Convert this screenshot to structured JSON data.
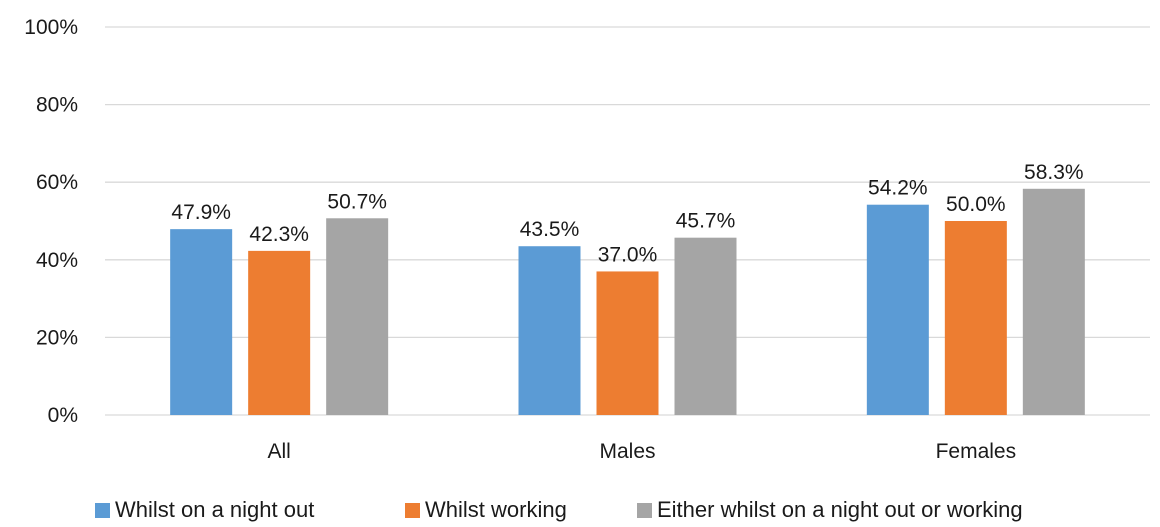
{
  "chart_data": {
    "type": "bar",
    "categories": [
      "All",
      "Males",
      "Females"
    ],
    "series": [
      {
        "name": "Whilst on a night out",
        "values": [
          47.9,
          43.5,
          54.2
        ],
        "labels": [
          "47.9%",
          "43.5%",
          "54.2%"
        ],
        "color": "#5b9bd5"
      },
      {
        "name": "Whilst working",
        "values": [
          42.3,
          37.0,
          50.0
        ],
        "labels": [
          "42.3%",
          "37.0%",
          "50.0%"
        ],
        "color": "#ed7d31"
      },
      {
        "name": "Either whilst on a night out or working",
        "values": [
          50.7,
          45.7,
          58.3
        ],
        "labels": [
          "50.7%",
          "45.7%",
          "58.3%"
        ],
        "color": "#a5a5a5"
      }
    ],
    "ylim": [
      0,
      100
    ],
    "yticks": [
      0,
      20,
      40,
      60,
      80,
      100
    ],
    "ytick_labels": [
      "0%",
      "20%",
      "40%",
      "60%",
      "80%",
      "100%"
    ],
    "grid": true,
    "legend": "bottom"
  }
}
